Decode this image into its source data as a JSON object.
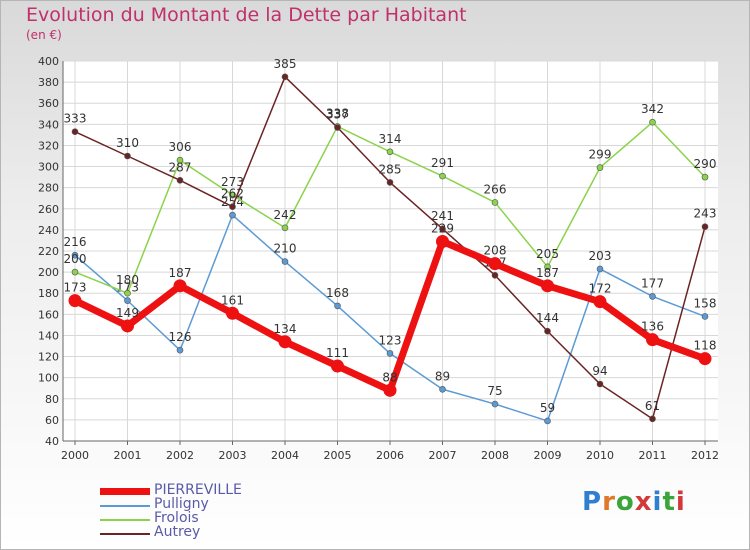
{
  "title": "Evolution du Montant de la Dette par Habitant",
  "subtitle": "(en €)",
  "logo": {
    "text": "Proxiti",
    "letter_colors": [
      "#2f7fd0",
      "#e0782a",
      "#3aa53a",
      "#d23a3a",
      "#2f7fd0",
      "#3aa53a",
      "#d23a3a"
    ]
  },
  "chart_data": {
    "type": "line",
    "x": [
      "2000",
      "2001",
      "2002",
      "2003",
      "2004",
      "2005",
      "2006",
      "2007",
      "2008",
      "2009",
      "2010",
      "2011",
      "2012"
    ],
    "ylim": [
      40,
      400
    ],
    "yticks": [
      40,
      60,
      80,
      100,
      120,
      140,
      160,
      180,
      200,
      220,
      240,
      260,
      280,
      300,
      320,
      340,
      360,
      380,
      400
    ],
    "grid": true,
    "legend_position": "bottom-left",
    "series": [
      {
        "name": "PIERREVILLE",
        "color": "#ee1111",
        "values": [
          173,
          149,
          187,
          161,
          134,
          111,
          88,
          229,
          208,
          187,
          172,
          136,
          118
        ]
      },
      {
        "name": "Pulligny",
        "color": "#5b9bd5",
        "values": [
          216,
          173,
          126,
          254,
          210,
          168,
          123,
          89,
          75,
          59,
          203,
          177,
          158
        ]
      },
      {
        "name": "Frolois",
        "color": "#8ad34a",
        "values": [
          200,
          180,
          306,
          273,
          242,
          338,
          314,
          291,
          266,
          205,
          299,
          342,
          290
        ]
      },
      {
        "name": "Autrey",
        "color": "#6b2424",
        "values": [
          333,
          310,
          287,
          262,
          385,
          337,
          285,
          241,
          197,
          144,
          94,
          61,
          243
        ]
      }
    ]
  }
}
